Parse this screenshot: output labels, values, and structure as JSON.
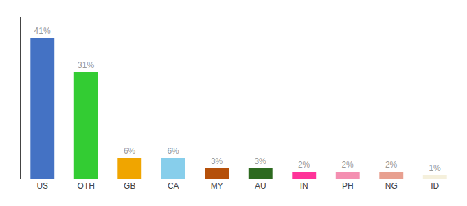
{
  "chart_data": {
    "type": "bar",
    "categories": [
      "US",
      "OTH",
      "GB",
      "CA",
      "MY",
      "AU",
      "IN",
      "PH",
      "NG",
      "ID"
    ],
    "values": [
      41,
      31,
      6,
      6,
      3,
      3,
      2,
      2,
      2,
      1
    ],
    "value_labels": [
      "41%",
      "31%",
      "6%",
      "6%",
      "3%",
      "3%",
      "2%",
      "2%",
      "2%",
      "1%"
    ],
    "colors": [
      "#4472c4",
      "#33cc33",
      "#f0a500",
      "#87ceeb",
      "#b5500a",
      "#2d6a1f",
      "#ff3399",
      "#f48fb1",
      "#e8a090",
      "#f5f0dc"
    ],
    "ylim": [
      0,
      47
    ],
    "grid": false,
    "data_labels": true,
    "tick_labels": "x"
  }
}
